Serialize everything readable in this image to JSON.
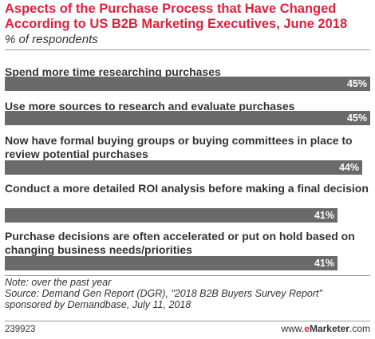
{
  "chart_data": {
    "type": "bar",
    "orientation": "horizontal",
    "title": "Aspects of the Purchase Process that Have Changed According to US B2B Marketing Executives, June 2018",
    "subtitle": "% of respondents",
    "categories": [
      "Spend more time researching purchases",
      "Use more sources to research and evaluate purchases",
      "Now have formal buying groups or buying committees in place to review potential purchases",
      "Conduct a more detailed ROI analysis before making a final decision",
      "Purchase decisions are often accelerated or put on hold based on changing business needs/priorities"
    ],
    "values": [
      45,
      45,
      44,
      41,
      41
    ],
    "value_labels": [
      "45%",
      "45%",
      "44%",
      "41%",
      "41%"
    ],
    "xlim": [
      0,
      45
    ],
    "grid": false,
    "legend": "none",
    "bar_color": "#6a6a6a"
  },
  "notes": {
    "note": "Note: over the past year",
    "source": "Source: Demand Gen Report (DGR), \"2018 B2B Buyers Survey Report\" sponsored by Demandbase, July 11, 2018"
  },
  "footer": {
    "chart_id": "239923",
    "brand_prefix": "www.",
    "brand_e": "e",
    "brand_main": "Marketer",
    "brand_suffix": ".com"
  },
  "colors": {
    "title": "#e0203c",
    "text": "#333333",
    "bar": "#6a6a6a",
    "value_label": "#ffffff"
  }
}
